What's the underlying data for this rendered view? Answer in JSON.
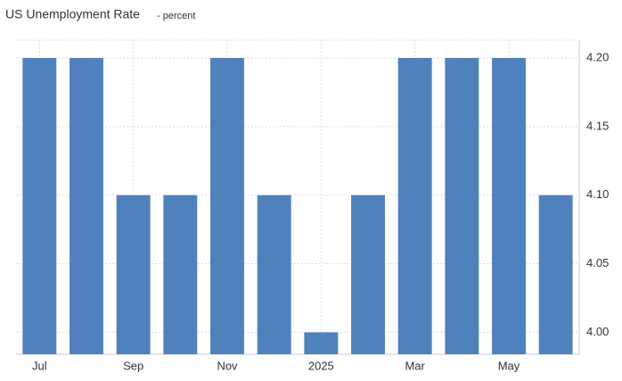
{
  "chart_data": {
    "type": "bar",
    "title": "US Unemployment Rate",
    "subtitle": "- percent",
    "categories": [
      "Jul",
      null,
      "Sep",
      null,
      "Nov",
      null,
      "2025",
      null,
      "Mar",
      null,
      "May",
      null
    ],
    "values": [
      4.2,
      4.2,
      4.1,
      4.1,
      4.2,
      4.1,
      4.0,
      4.1,
      4.2,
      4.2,
      4.2,
      4.1
    ],
    "color": "#4f81bd",
    "ylim": [
      3.984,
      4.213
    ],
    "yticks": [
      {
        "value": 4.0,
        "label": "4.00"
      },
      {
        "value": 4.05,
        "label": "4.05"
      },
      {
        "value": 4.1,
        "label": "4.10"
      },
      {
        "value": 4.15,
        "label": "4.15"
      },
      {
        "value": 4.2,
        "label": "4.20"
      }
    ],
    "grid": true
  }
}
